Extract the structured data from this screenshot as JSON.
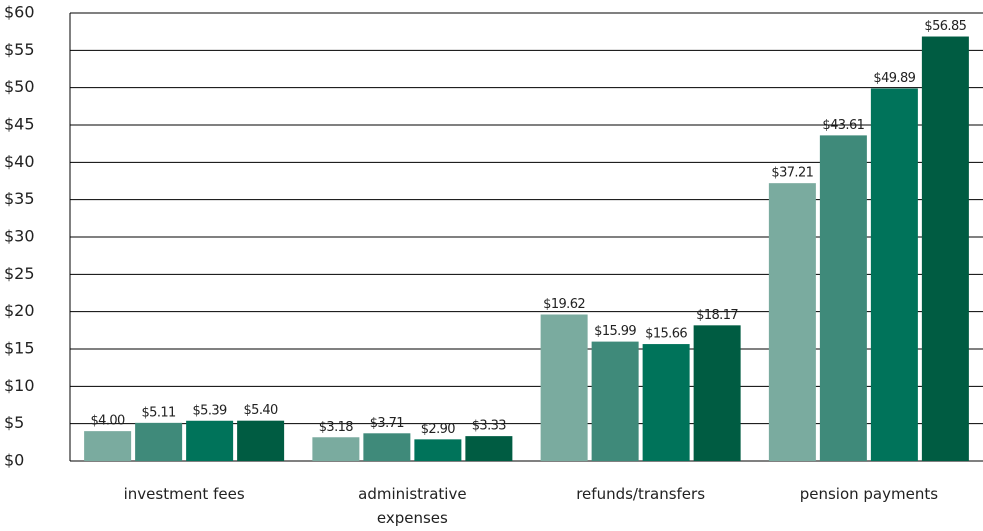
{
  "chart_data": {
    "type": "bar",
    "categories": [
      "investment fees",
      "administrative expenses",
      "refunds/transfers",
      "pension payments"
    ],
    "series": [
      {
        "color": "#7aab9f",
        "values": [
          4.0,
          3.18,
          19.62,
          37.21
        ],
        "value_labels": [
          "$4.00",
          "$3.18",
          "$19.62",
          "$37.21"
        ]
      },
      {
        "color": "#3f8a7a",
        "values": [
          5.11,
          3.71,
          15.99,
          43.61
        ],
        "value_labels": [
          "$5.11",
          "$3.71",
          "$15.99",
          "$43.61"
        ]
      },
      {
        "color": "#00735a",
        "values": [
          5.39,
          2.9,
          15.66,
          49.89
        ],
        "value_labels": [
          "$5.39",
          "$2.90",
          "$15.66",
          "$49.89"
        ]
      },
      {
        "color": "#005c42",
        "values": [
          5.4,
          3.33,
          18.17,
          56.85
        ],
        "value_labels": [
          "$5.40",
          "$3.33",
          "$18.17",
          "$56.85"
        ]
      }
    ],
    "ylim": [
      0,
      60
    ],
    "yticks": [
      {
        "value": 0,
        "label": "$0"
      },
      {
        "value": 5,
        "label": "$5"
      },
      {
        "value": 10,
        "label": "$10"
      },
      {
        "value": 15,
        "label": "$15"
      },
      {
        "value": 20,
        "label": "$20"
      },
      {
        "value": 25,
        "label": "$25"
      },
      {
        "value": 30,
        "label": "$30"
      },
      {
        "value": 35,
        "label": "$35"
      },
      {
        "value": 40,
        "label": "$40"
      },
      {
        "value": 45,
        "label": "$45"
      },
      {
        "value": 50,
        "label": "$50"
      },
      {
        "value": 55,
        "label": "$55"
      },
      {
        "value": 60,
        "label": "$60"
      }
    ],
    "grid": true
  }
}
